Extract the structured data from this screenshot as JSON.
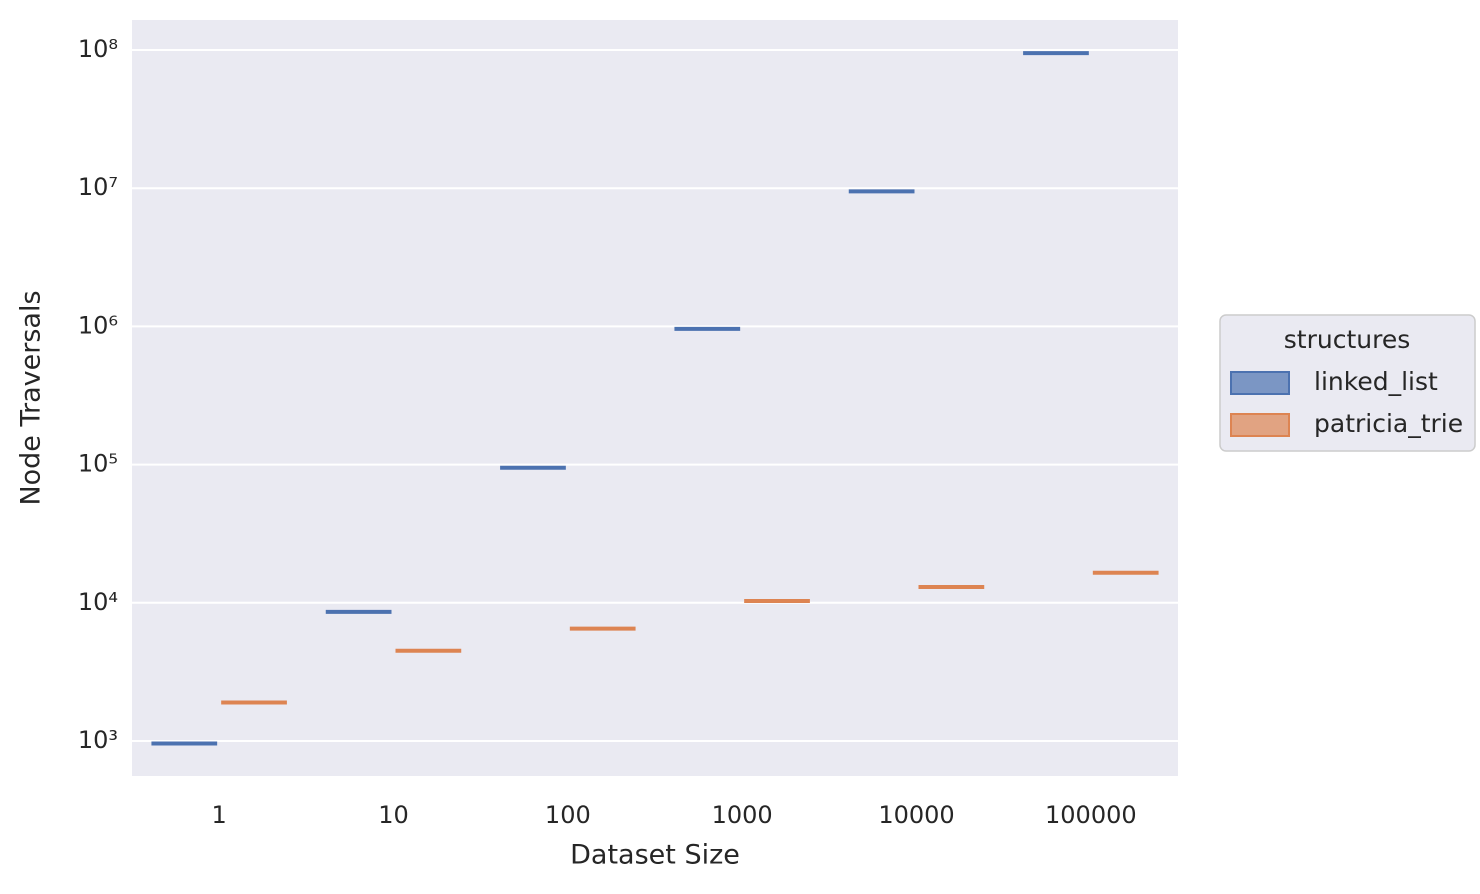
{
  "chart_data": {
    "type": "box",
    "x_label": "Dataset Size",
    "y_label": "Node Traversals",
    "categories": [
      "1",
      "10",
      "100",
      "1000",
      "10000",
      "100000"
    ],
    "series": [
      {
        "name": "linked_list",
        "color": "#4c72b0",
        "values": [
          960,
          8600,
          95000,
          960000,
          9500000,
          95000000
        ]
      },
      {
        "name": "patricia_trie",
        "color": "#dd8452",
        "values": [
          1900,
          4500,
          6500,
          10300,
          13000,
          16500
        ]
      }
    ],
    "log_y": true,
    "ylim": [
      558,
      165000000
    ],
    "yticks": [
      {
        "value": 1000,
        "label": "10³"
      },
      {
        "value": 10000,
        "label": "10⁴"
      },
      {
        "value": 100000,
        "label": "10⁵"
      },
      {
        "value": 1000000,
        "label": "10⁶"
      },
      {
        "value": 10000000,
        "label": "10⁷"
      },
      {
        "value": 100000000,
        "label": "10⁸"
      }
    ],
    "grid": true,
    "legend_title": "structures",
    "legend_position": "right"
  }
}
